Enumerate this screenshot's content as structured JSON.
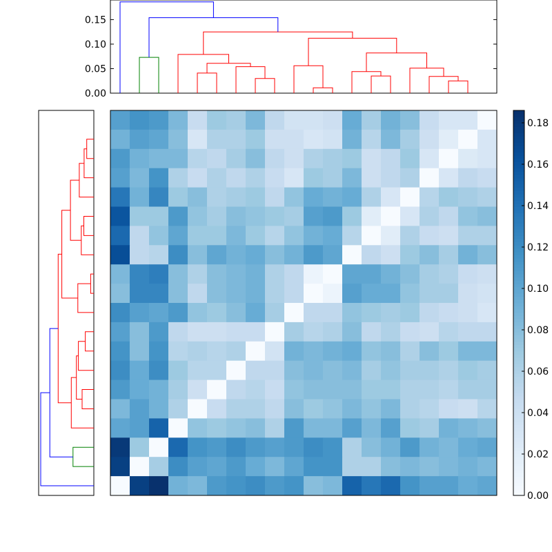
{
  "chart_data": [
    {
      "type": "dendrogram",
      "orientation": "top",
      "ylim": [
        0,
        0.19
      ],
      "yticks": [
        "0.00",
        "0.05",
        "0.10",
        "0.15"
      ],
      "links": [
        {
          "a": 10.5,
          "b": 11.5,
          "h": 0.011,
          "color": "#ff0000"
        },
        {
          "a": 7.5,
          "b": 8.5,
          "h": 0.03,
          "color": "#ff0000"
        },
        {
          "a": 13.5,
          "b": 14.5,
          "h": 0.035,
          "color": "#ff0000"
        },
        {
          "a": 17.5,
          "b": 18.5,
          "h": 0.025,
          "color": "#ff0000"
        },
        {
          "a": 4.5,
          "b": 5.5,
          "h": 0.041,
          "color": "#ff0000"
        },
        {
          "a": 16.5,
          "b": 18.0,
          "h": 0.034,
          "color": "#ff0000"
        },
        {
          "a": 6.5,
          "b": 8.0,
          "h": 0.054,
          "color": "#ff0000"
        },
        {
          "a": 9.5,
          "b": 11.0,
          "h": 0.056,
          "color": "#ff0000"
        },
        {
          "a": 12.5,
          "b": 14.0,
          "h": 0.044,
          "color": "#ff0000"
        },
        {
          "a": 15.5,
          "b": 17.25,
          "h": 0.051,
          "color": "#ff0000"
        },
        {
          "a": 5.0,
          "b": 7.25,
          "h": 0.061,
          "color": "#ff0000"
        },
        {
          "a": 3.5,
          "b": 6.125,
          "h": 0.079,
          "color": "#ff0000"
        },
        {
          "a": 13.25,
          "b": 16.375,
          "h": 0.082,
          "color": "#ff0000"
        },
        {
          "a": 10.25,
          "b": 14.8125,
          "h": 0.112,
          "color": "#ff0000"
        },
        {
          "a": 4.8125,
          "b": 12.53125,
          "h": 0.125,
          "color": "#ff0000"
        },
        {
          "a": 1.5,
          "b": 2.5,
          "h": 0.073,
          "color": "#008000"
        },
        {
          "a": 2.0,
          "b": 8.671875,
          "h": 0.154,
          "color": "#0000ff"
        },
        {
          "a": 0.5,
          "b": 5.3359375,
          "h": 0.186,
          "color": "#0000ff"
        }
      ]
    },
    {
      "type": "dendrogram",
      "orientation": "left",
      "links": [
        {
          "a": 10.5,
          "b": 11.5,
          "h": 0.011,
          "color": "#ff0000"
        },
        {
          "a": 7.5,
          "b": 8.5,
          "h": 0.03,
          "color": "#ff0000"
        },
        {
          "a": 13.5,
          "b": 14.5,
          "h": 0.035,
          "color": "#ff0000"
        },
        {
          "a": 17.5,
          "b": 18.5,
          "h": 0.025,
          "color": "#ff0000"
        },
        {
          "a": 4.5,
          "b": 5.5,
          "h": 0.041,
          "color": "#ff0000"
        },
        {
          "a": 16.5,
          "b": 18.0,
          "h": 0.034,
          "color": "#ff0000"
        },
        {
          "a": 6.5,
          "b": 8.0,
          "h": 0.054,
          "color": "#ff0000"
        },
        {
          "a": 9.5,
          "b": 11.0,
          "h": 0.056,
          "color": "#ff0000"
        },
        {
          "a": 12.5,
          "b": 14.0,
          "h": 0.044,
          "color": "#ff0000"
        },
        {
          "a": 15.5,
          "b": 17.25,
          "h": 0.051,
          "color": "#ff0000"
        },
        {
          "a": 5.0,
          "b": 7.25,
          "h": 0.061,
          "color": "#ff0000"
        },
        {
          "a": 3.5,
          "b": 6.125,
          "h": 0.079,
          "color": "#ff0000"
        },
        {
          "a": 13.25,
          "b": 16.375,
          "h": 0.082,
          "color": "#ff0000"
        },
        {
          "a": 10.25,
          "b": 14.8125,
          "h": 0.112,
          "color": "#ff0000"
        },
        {
          "a": 4.8125,
          "b": 12.53125,
          "h": 0.125,
          "color": "#ff0000"
        },
        {
          "a": 1.5,
          "b": 2.5,
          "h": 0.073,
          "color": "#008000"
        },
        {
          "a": 2.0,
          "b": 8.671875,
          "h": 0.154,
          "color": "#0000ff"
        },
        {
          "a": 0.5,
          "b": 5.3359375,
          "h": 0.186,
          "color": "#0000ff"
        }
      ]
    },
    {
      "type": "heatmap",
      "colormap": "Blues",
      "vmin": 0.0,
      "vmax": 0.186,
      "colorbar_ticks": [
        "0.00",
        "0.02",
        "0.04",
        "0.06",
        "0.08",
        "0.10",
        "0.12",
        "0.14",
        "0.16",
        "0.18"
      ],
      "rows_top_to_bottom": [
        [
          0.105,
          0.115,
          0.11,
          0.085,
          0.045,
          0.07,
          0.065,
          0.085,
          0.05,
          0.035,
          0.035,
          0.04,
          0.095,
          0.065,
          0.09,
          0.08,
          0.045,
          0.03,
          0.03,
          0.0
        ],
        [
          0.09,
          0.105,
          0.1,
          0.08,
          0.03,
          0.06,
          0.06,
          0.07,
          0.04,
          0.04,
          0.03,
          0.035,
          0.09,
          0.055,
          0.085,
          0.065,
          0.04,
          0.02,
          0.0,
          0.03
        ],
        [
          0.11,
          0.09,
          0.085,
          0.085,
          0.055,
          0.05,
          0.065,
          0.08,
          0.05,
          0.04,
          0.06,
          0.065,
          0.07,
          0.04,
          0.05,
          0.07,
          0.03,
          0.0,
          0.025,
          0.03
        ],
        [
          0.105,
          0.085,
          0.115,
          0.06,
          0.045,
          0.06,
          0.05,
          0.06,
          0.045,
          0.03,
          0.07,
          0.065,
          0.085,
          0.04,
          0.05,
          0.06,
          0.0,
          0.03,
          0.05,
          0.045
        ],
        [
          0.135,
          0.09,
          0.125,
          0.07,
          0.08,
          0.06,
          0.065,
          0.07,
          0.05,
          0.075,
          0.095,
          0.09,
          0.095,
          0.06,
          0.03,
          0.0,
          0.055,
          0.07,
          0.065,
          0.06
        ],
        [
          0.16,
          0.07,
          0.07,
          0.11,
          0.075,
          0.065,
          0.08,
          0.075,
          0.07,
          0.065,
          0.105,
          0.11,
          0.07,
          0.02,
          0.0,
          0.03,
          0.06,
          0.05,
          0.075,
          0.08
        ],
        [
          0.145,
          0.05,
          0.075,
          0.1,
          0.07,
          0.07,
          0.085,
          0.07,
          0.055,
          0.075,
          0.09,
          0.095,
          0.055,
          0.0,
          0.02,
          0.06,
          0.045,
          0.04,
          0.06,
          0.06
        ],
        [
          0.165,
          0.05,
          0.055,
          0.12,
          0.08,
          0.1,
          0.09,
          0.095,
          0.08,
          0.09,
          0.11,
          0.1,
          0.0,
          0.05,
          0.04,
          0.07,
          0.08,
          0.065,
          0.09,
          0.08
        ],
        [
          0.085,
          0.125,
          0.13,
          0.08,
          0.06,
          0.08,
          0.085,
          0.09,
          0.06,
          0.05,
          0.01,
          0.0,
          0.1,
          0.1,
          0.09,
          0.08,
          0.065,
          0.06,
          0.045,
          0.04
        ],
        [
          0.08,
          0.125,
          0.125,
          0.08,
          0.05,
          0.08,
          0.085,
          0.09,
          0.06,
          0.05,
          0.0,
          0.01,
          0.105,
          0.095,
          0.095,
          0.075,
          0.065,
          0.065,
          0.04,
          0.035
        ],
        [
          0.12,
          0.105,
          0.1,
          0.11,
          0.075,
          0.07,
          0.08,
          0.095,
          0.065,
          0.0,
          0.05,
          0.05,
          0.075,
          0.07,
          0.065,
          0.07,
          0.05,
          0.045,
          0.04,
          0.03
        ],
        [
          0.105,
          0.08,
          0.11,
          0.05,
          0.04,
          0.04,
          0.045,
          0.045,
          0.0,
          0.065,
          0.055,
          0.06,
          0.08,
          0.05,
          0.06,
          0.045,
          0.04,
          0.055,
          0.05,
          0.05
        ],
        [
          0.115,
          0.08,
          0.115,
          0.055,
          0.06,
          0.055,
          0.06,
          0.0,
          0.035,
          0.09,
          0.085,
          0.09,
          0.095,
          0.075,
          0.08,
          0.06,
          0.08,
          0.07,
          0.085,
          0.085
        ],
        [
          0.12,
          0.095,
          0.12,
          0.07,
          0.055,
          0.055,
          0.0,
          0.05,
          0.05,
          0.08,
          0.085,
          0.08,
          0.085,
          0.065,
          0.075,
          0.065,
          0.065,
          0.06,
          0.07,
          0.065
        ],
        [
          0.11,
          0.095,
          0.09,
          0.065,
          0.04,
          0.0,
          0.05,
          0.055,
          0.045,
          0.075,
          0.08,
          0.08,
          0.08,
          0.07,
          0.07,
          0.06,
          0.06,
          0.055,
          0.065,
          0.065
        ],
        [
          0.085,
          0.105,
          0.09,
          0.06,
          0.0,
          0.045,
          0.06,
          0.06,
          0.05,
          0.08,
          0.07,
          0.075,
          0.085,
          0.075,
          0.085,
          0.06,
          0.055,
          0.045,
          0.04,
          0.055
        ],
        [
          0.1,
          0.105,
          0.15,
          0.0,
          0.075,
          0.07,
          0.075,
          0.08,
          0.06,
          0.11,
          0.085,
          0.085,
          0.105,
          0.085,
          0.105,
          0.07,
          0.065,
          0.09,
          0.085,
          0.08
        ],
        [
          0.18,
          0.07,
          0.0,
          0.145,
          0.115,
          0.11,
          0.12,
          0.11,
          0.105,
          0.11,
          0.12,
          0.115,
          0.06,
          0.08,
          0.09,
          0.11,
          0.09,
          0.085,
          0.095,
          0.1
        ],
        [
          0.175,
          0.0,
          0.065,
          0.12,
          0.105,
          0.1,
          0.11,
          0.095,
          0.085,
          0.1,
          0.115,
          0.115,
          0.06,
          0.06,
          0.08,
          0.085,
          0.08,
          0.085,
          0.09,
          0.085
        ],
        [
          0.0,
          0.175,
          0.185,
          0.09,
          0.085,
          0.11,
          0.115,
          0.12,
          0.11,
          0.115,
          0.08,
          0.085,
          0.15,
          0.135,
          0.145,
          0.115,
          0.105,
          0.105,
          0.095,
          0.1
        ]
      ]
    }
  ]
}
